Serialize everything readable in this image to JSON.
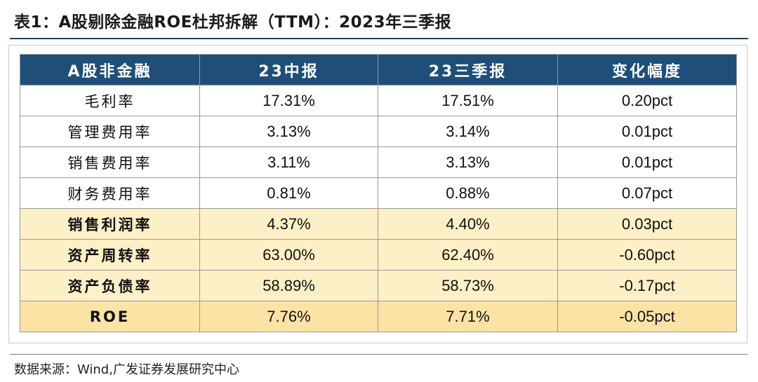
{
  "title": "表1：A股剔除金融ROE杜邦拆解（TTM）：2023年三季报",
  "table": {
    "headers": [
      "A股非金融",
      "23中报",
      "23三季报",
      "变化幅度"
    ],
    "rows": [
      {
        "label": "毛利率",
        "h1": "17.31%",
        "q3": "17.51%",
        "change": "0.20pct",
        "style": "plain"
      },
      {
        "label": "管理费用率",
        "h1": "3.13%",
        "q3": "3.14%",
        "change": "0.01pct",
        "style": "plain"
      },
      {
        "label": "销售费用率",
        "h1": "3.11%",
        "q3": "3.13%",
        "change": "0.01pct",
        "style": "plain"
      },
      {
        "label": "财务费用率",
        "h1": "0.81%",
        "q3": "0.88%",
        "change": "0.07pct",
        "style": "plain"
      },
      {
        "label": "销售利润率",
        "h1": "4.37%",
        "q3": "4.40%",
        "change": "0.03pct",
        "style": "highlight"
      },
      {
        "label": "资产周转率",
        "h1": "63.00%",
        "q3": "62.40%",
        "change": "-0.60pct",
        "style": "highlight"
      },
      {
        "label": "资产负债率",
        "h1": "58.89%",
        "q3": "58.73%",
        "change": "-0.17pct",
        "style": "highlight"
      },
      {
        "label": "ROE",
        "h1": "7.76%",
        "q3": "7.71%",
        "change": "-0.05pct",
        "style": "strong"
      }
    ]
  },
  "source": "数据来源：Wind,广发证券发展研究中心",
  "colors": {
    "header_bg": "#1f4e79",
    "highlight_bg": "#fdefc6",
    "strong_bg": "#fbe3a6"
  }
}
